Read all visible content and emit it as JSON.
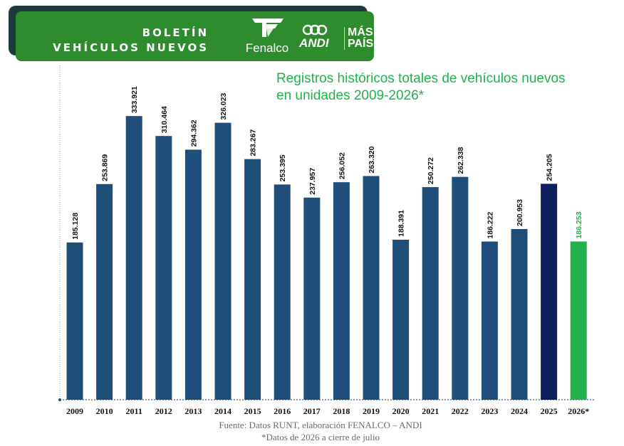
{
  "header": {
    "title_line1": "BOLETÍN",
    "title_line2": "VEHÍCULOS NUEVOS",
    "logos": {
      "fenalco": "Fenalco",
      "andi": "ANDI",
      "mas_pais_line1": "MÁS",
      "mas_pais_line2": "PAÍS"
    }
  },
  "colors": {
    "banner": "#2e8b2e",
    "bar": "#1f4e79",
    "bar_2025": "#0d1f5c",
    "bar_2026": "#22b14c",
    "title": "#22b14c"
  },
  "chart_data": {
    "type": "bar",
    "title_line1": "Registros históricos totales de vehículos nuevos",
    "title_line2": "en unidades 2009-2026*",
    "categories": [
      "2009",
      "2010",
      "2011",
      "2012",
      "2013",
      "2014",
      "2015",
      "2016",
      "2017",
      "2018",
      "2019",
      "2020",
      "2021",
      "2022",
      "2023",
      "2024",
      "2025",
      "2026*"
    ],
    "values": [
      185128,
      253869,
      333921,
      310464,
      294362,
      326023,
      283267,
      253395,
      237957,
      256052,
      263320,
      188391,
      250272,
      262338,
      186222,
      200953,
      254205,
      186253
    ],
    "labels": [
      "185.128",
      "253.869",
      "333.921",
      "310.464",
      "294.362",
      "326.023",
      "283.267",
      "253.395",
      "237.957",
      "256.052",
      "263.320",
      "188.391",
      "250.272",
      "262.338",
      "186.222",
      "200.953",
      "254.205",
      "186.253"
    ],
    "ylim": [
      0,
      360000
    ],
    "grid": false,
    "xlabel": "",
    "ylabel": ""
  },
  "footer": {
    "source": "Fuente: Datos RUNT, elaboración FENALCO – ANDI",
    "note": "*Datos de 2026 a cierre de julio"
  }
}
